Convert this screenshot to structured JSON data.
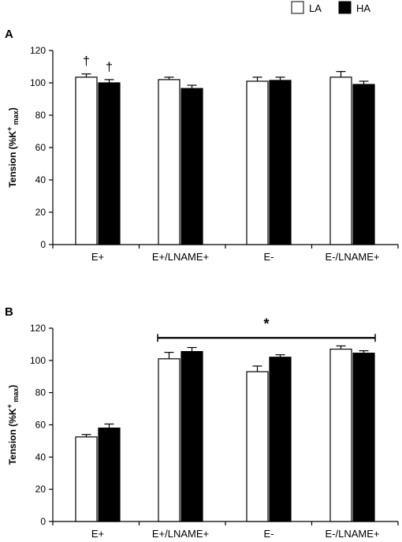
{
  "legend": {
    "position": "top-right",
    "items": [
      {
        "label": "LA",
        "color": "#ffffff"
      },
      {
        "label": "HA",
        "color": "#000000"
      }
    ]
  },
  "chart_data": [
    {
      "type": "bar",
      "panel_label": "A",
      "ylabel": "Tension (%K+max)",
      "ylabel_parts": {
        "main": "Tension (%K",
        "sup": "+",
        "sub": "max",
        "close": ")"
      },
      "ylim": [
        0,
        120
      ],
      "yticks": [
        0,
        20,
        40,
        60,
        80,
        100,
        120
      ],
      "categories": [
        "E+",
        "E+/LNAME+",
        "E-",
        "E-/LNAME+"
      ],
      "series": [
        {
          "name": "LA",
          "color": "#ffffff",
          "values": [
            103.5,
            102,
            101,
            103.5
          ],
          "errors": [
            2,
            1.5,
            2.5,
            3.5
          ]
        },
        {
          "name": "HA",
          "color": "#000000",
          "values": [
            100,
            96.5,
            101.5,
            99
          ],
          "errors": [
            2,
            2,
            2,
            2
          ]
        }
      ],
      "annotations": [
        {
          "text": "†",
          "category": 0,
          "series": 0
        },
        {
          "text": "†",
          "category": 0,
          "series": 1
        }
      ]
    },
    {
      "type": "bar",
      "panel_label": "B",
      "ylabel": "Tension (%K+max)",
      "ylabel_parts": {
        "main": "Tension (%K",
        "sup": "+",
        "sub": "max",
        "close": ")"
      },
      "ylim": [
        0,
        120
      ],
      "yticks": [
        0,
        20,
        40,
        60,
        80,
        100,
        120
      ],
      "categories": [
        "E+",
        "E+/LNAME+",
        "E-",
        "E-/LNAME+"
      ],
      "series": [
        {
          "name": "LA",
          "color": "#ffffff",
          "values": [
            52.5,
            101,
            93,
            107
          ],
          "errors": [
            1.5,
            4,
            3.5,
            2
          ]
        },
        {
          "name": "HA",
          "color": "#000000",
          "values": [
            58,
            105.5,
            102,
            104.5
          ],
          "errors": [
            2.5,
            2.5,
            1.5,
            1.5
          ]
        }
      ],
      "significance": {
        "text": "*",
        "from_category": 1,
        "to_category": 3,
        "level": 114
      }
    }
  ]
}
